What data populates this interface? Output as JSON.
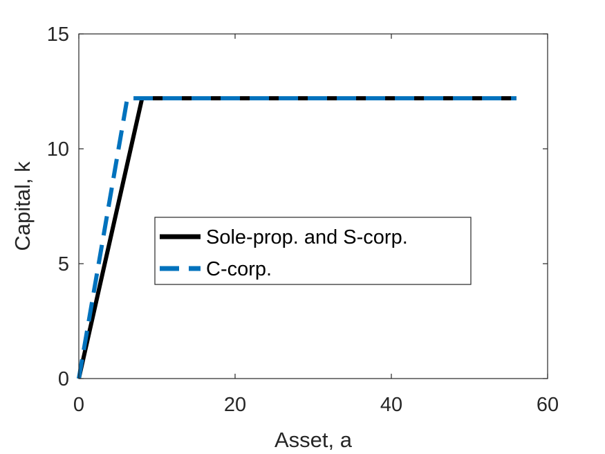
{
  "chart_data": {
    "type": "line",
    "title": "",
    "xlabel": "Asset, a",
    "ylabel": "Capital, k",
    "xlim": [
      0,
      60
    ],
    "ylim": [
      0,
      15
    ],
    "x_ticks": [
      0,
      20,
      40,
      60
    ],
    "x_tick_labels": [
      "0",
      "20",
      "40",
      "60"
    ],
    "y_ticks": [
      0,
      5,
      10,
      15
    ],
    "y_tick_labels": [
      "0",
      "5",
      "10",
      "15"
    ],
    "grid": false,
    "legend_position": "center",
    "series": [
      {
        "name": "Sole-prop. and S-corp.",
        "color": "#000000",
        "style": "solid",
        "points": [
          [
            0,
            0
          ],
          [
            8.1,
            12.2
          ],
          [
            56,
            12.2
          ]
        ]
      },
      {
        "name": "C-corp.",
        "color": "#0072BD",
        "style": "dashed",
        "points": [
          [
            0,
            0
          ],
          [
            6.2,
            12.2
          ],
          [
            56,
            12.2
          ]
        ]
      }
    ]
  }
}
